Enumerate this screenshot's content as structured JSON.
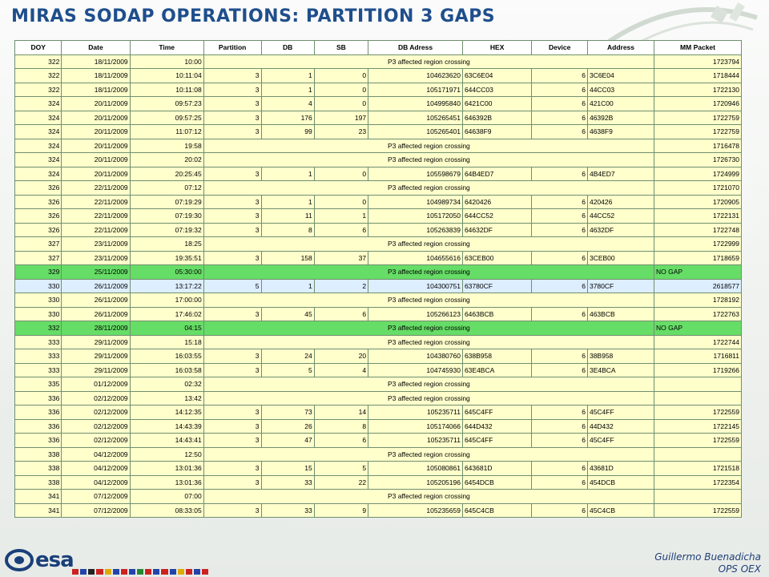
{
  "title": "MIRAS SODAP OPERATIONS: PARTITION 3 GAPS",
  "columns": [
    "DOY",
    "Date",
    "Time",
    "Partition",
    "DB",
    "SB",
    "DB Adress",
    "HEX",
    "Device",
    "Address",
    "MM Packet"
  ],
  "rows": [
    {
      "doy": "322",
      "date": "18/11/2009",
      "time": "10:00",
      "note": "P3 affected region crossing",
      "mm": "1723794"
    },
    {
      "doy": "322",
      "date": "18/11/2009",
      "time": "10:11:04",
      "partition": "3",
      "db": "1",
      "sb": "0",
      "dbaddr": "104623620",
      "hex": "63C6E04",
      "device": "6",
      "address": "3C6E04",
      "mm": "1718444"
    },
    {
      "doy": "322",
      "date": "18/11/2009",
      "time": "10:11:08",
      "partition": "3",
      "db": "1",
      "sb": "0",
      "dbaddr": "105171971",
      "hex": "644CC03",
      "device": "6",
      "address": "44CC03",
      "mm": "1722130"
    },
    {
      "doy": "324",
      "date": "20/11/2009",
      "time": "09:57:23",
      "partition": "3",
      "db": "4",
      "sb": "0",
      "dbaddr": "104995840",
      "hex": "6421C00",
      "device": "6",
      "address": "421C00",
      "mm": "1720946"
    },
    {
      "doy": "324",
      "date": "20/11/2009",
      "time": "09:57:25",
      "partition": "3",
      "db": "176",
      "sb": "197",
      "dbaddr": "105265451",
      "hex": "646392B",
      "device": "6",
      "address": "46392B",
      "mm": "1722759"
    },
    {
      "doy": "324",
      "date": "20/11/2009",
      "time": "11:07:12",
      "partition": "3",
      "db": "99",
      "sb": "23",
      "dbaddr": "105265401",
      "hex": "64638F9",
      "device": "6",
      "address": "4638F9",
      "mm": "1722759"
    },
    {
      "doy": "324",
      "date": "20/11/2009",
      "time": "19:58",
      "note": "P3 affected region crossing",
      "mm": "1716478"
    },
    {
      "doy": "324",
      "date": "20/11/2009",
      "time": "20:02",
      "note": "P3 affected region crossing",
      "mm": "1726730"
    },
    {
      "doy": "324",
      "date": "20/11/2009",
      "time": "20:25:45",
      "partition": "3",
      "db": "1",
      "sb": "0",
      "dbaddr": "105598679",
      "hex": "64B4ED7",
      "device": "6",
      "address": "4B4ED7",
      "mm": "1724999"
    },
    {
      "doy": "326",
      "date": "22/11/2009",
      "time": "07:12",
      "note": "P3 affected region crossing",
      "mm": "1721070"
    },
    {
      "doy": "326",
      "date": "22/11/2009",
      "time": "07:19:29",
      "partition": "3",
      "db": "1",
      "sb": "0",
      "dbaddr": "104989734",
      "hex": "6420426",
      "device": "6",
      "address": "420426",
      "mm": "1720905"
    },
    {
      "doy": "326",
      "date": "22/11/2009",
      "time": "07:19:30",
      "partition": "3",
      "db": "11",
      "sb": "1",
      "dbaddr": "105172050",
      "hex": "644CC52",
      "device": "6",
      "address": "44CC52",
      "mm": "1722131"
    },
    {
      "doy": "326",
      "date": "22/11/2009",
      "time": "07:19:32",
      "partition": "3",
      "db": "8",
      "sb": "6",
      "dbaddr": "105263839",
      "hex": "64632DF",
      "device": "6",
      "address": "4632DF",
      "mm": "1722748"
    },
    {
      "doy": "327",
      "date": "23/11/2009",
      "time": "18:25",
      "note": "P3 affected region crossing",
      "mm": "1722999"
    },
    {
      "doy": "327",
      "date": "23/11/2009",
      "time": "19:35:51",
      "partition": "3",
      "db": "158",
      "sb": "37",
      "dbaddr": "104655616",
      "hex": "63CEB00",
      "device": "6",
      "address": "3CEB00",
      "mm": "1718659"
    },
    {
      "doy": "329",
      "date": "25/11/2009",
      "time": "05:30:00",
      "note": "P3 affected region crossing",
      "mm": "NO GAP",
      "mmAlign": "left",
      "style": "green"
    },
    {
      "doy": "330",
      "date": "26/11/2009",
      "time": "13:17:22",
      "partition": "5",
      "db": "1",
      "sb": "2",
      "dbaddr": "104300751",
      "hex": "63780CF",
      "device": "6",
      "address": "3780CF",
      "mm": "2618577",
      "style": "blue"
    },
    {
      "doy": "330",
      "date": "26/11/2009",
      "time": "17:00:00",
      "note": "P3 affected region crossing",
      "mm": "1728192"
    },
    {
      "doy": "330",
      "date": "26/11/2009",
      "time": "17:46:02",
      "partition": "3",
      "db": "45",
      "sb": "6",
      "dbaddr": "105266123",
      "hex": "6463BCB",
      "device": "6",
      "address": "463BCB",
      "mm": "1722763"
    },
    {
      "doy": "332",
      "date": "28/11/2009",
      "time": "04:15",
      "note": "P3 affected region crossing",
      "mm": "NO GAP",
      "mmAlign": "left",
      "style": "green"
    },
    {
      "doy": "333",
      "date": "29/11/2009",
      "time": "15:18",
      "note": "P3 affected region crossing",
      "mm": "1722744"
    },
    {
      "doy": "333",
      "date": "29/11/2009",
      "time": "16:03:55",
      "partition": "3",
      "db": "24",
      "sb": "20",
      "dbaddr": "104380760",
      "hex": "638B958",
      "device": "6",
      "address": "38B958",
      "mm": "1716811"
    },
    {
      "doy": "333",
      "date": "29/11/2009",
      "time": "16:03:58",
      "partition": "3",
      "db": "5",
      "sb": "4",
      "dbaddr": "104745930",
      "hex": "63E4BCA",
      "device": "6",
      "address": "3E4BCA",
      "mm": "1719266"
    },
    {
      "doy": "335",
      "date": "01/12/2009",
      "time": "02:32",
      "note": "P3 affected region crossing",
      "mm": ""
    },
    {
      "doy": "336",
      "date": "02/12/2009",
      "time": "13:42",
      "note": "P3 affected region crossing",
      "mm": ""
    },
    {
      "doy": "336",
      "date": "02/12/2009",
      "time": "14:12:35",
      "partition": "3",
      "db": "73",
      "sb": "14",
      "dbaddr": "105235711",
      "hex": "645C4FF",
      "device": "6",
      "address": "45C4FF",
      "mm": "1722559"
    },
    {
      "doy": "336",
      "date": "02/12/2009",
      "time": "14:43:39",
      "partition": "3",
      "db": "26",
      "sb": "8",
      "dbaddr": "105174066",
      "hex": "644D432",
      "device": "6",
      "address": "44D432",
      "mm": "1722145"
    },
    {
      "doy": "336",
      "date": "02/12/2009",
      "time": "14:43:41",
      "partition": "3",
      "db": "47",
      "sb": "6",
      "dbaddr": "105235711",
      "hex": "645C4FF",
      "device": "6",
      "address": "45C4FF",
      "mm": "1722559"
    },
    {
      "doy": "338",
      "date": "04/12/2009",
      "time": "12:50",
      "note": "P3 affected region crossing",
      "mm": ""
    },
    {
      "doy": "338",
      "date": "04/12/2009",
      "time": "13:01:36",
      "partition": "3",
      "db": "15",
      "sb": "5",
      "dbaddr": "105080861",
      "hex": "643681D",
      "device": "6",
      "address": "43681D",
      "mm": "1721518"
    },
    {
      "doy": "338",
      "date": "04/12/2009",
      "time": "13:01:36",
      "partition": "3",
      "db": "33",
      "sb": "22",
      "dbaddr": "105205196",
      "hex": "6454DCB",
      "device": "6",
      "address": "454DCB",
      "mm": "1722354"
    },
    {
      "doy": "341",
      "date": "07/12/2009",
      "time": "07:00",
      "note": "P3 affected region crossing",
      "mm": ""
    },
    {
      "doy": "341",
      "date": "07/12/2009",
      "time": "08:33:05",
      "partition": "3",
      "db": "33",
      "sb": "9",
      "dbaddr": "105235659",
      "hex": "645C4CB",
      "device": "6",
      "address": "45C4CB",
      "mm": "1722559"
    }
  ],
  "footer": {
    "logo_text": "esa",
    "author": "Guillermo Buenadicha",
    "dept": "OPS OEX"
  },
  "colors": {
    "title": "#1f4e8c",
    "row": "#ffffcc",
    "no_gap_row": "#66dd66",
    "partition5_row": "#ddeeff",
    "border": "#6f8f6f"
  }
}
